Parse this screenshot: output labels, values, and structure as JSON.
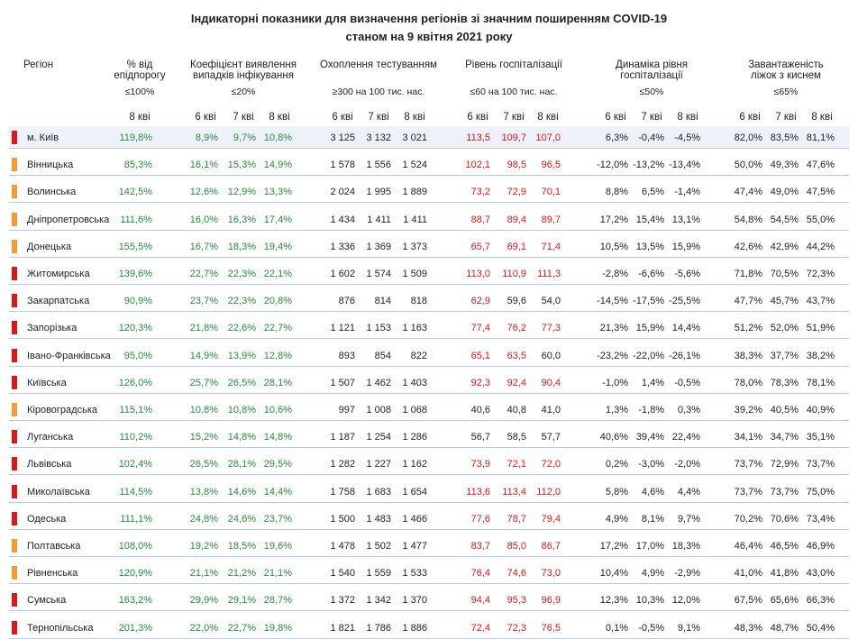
{
  "title": [
    "Індикаторні показники для визначення регіонів зі значним поширенням COVID-19",
    "станом на 9 квітня 2021 року"
  ],
  "header": {
    "region": "Регіон",
    "groups": [
      {
        "title": [
          "% від",
          "епідпорогу"
        ],
        "threshold": "≤100%",
        "days": [
          "8 кві"
        ],
        "color": "#2a8a3e"
      },
      {
        "title": [
          "Коефіцієнт виявлення",
          "випадків інфікування"
        ],
        "threshold": "≤20%",
        "days": [
          "6 кві",
          "7 кві",
          "8 кві"
        ],
        "color": "#2a8a3e"
      },
      {
        "title": [
          "Охоплення тестуванням"
        ],
        "threshold": "≥300 на 100 тис. нас.",
        "days": [
          "6 кві",
          "7 кві",
          "8 кві"
        ],
        "color": "#222222"
      },
      {
        "title": [
          "Рівень госпіталізації"
        ],
        "threshold": "≤60 на 100 тис. нас.",
        "days": [
          "6 кві",
          "7 кві",
          "8 кві"
        ],
        "color": "#222222"
      },
      {
        "title": [
          "Динаміка рівня",
          "госпіталізації"
        ],
        "threshold": "≤50%",
        "days": [
          "6 кві",
          "7 кві",
          "8 кві"
        ],
        "color": "#222222"
      },
      {
        "title": [
          "Завантаженість",
          "ліжок з киснем"
        ],
        "threshold": "≤65%",
        "days": [
          "6 кві",
          "7 кві",
          "8 кві"
        ],
        "color": "#222222"
      }
    ]
  },
  "rows": [
    {
      "region": "м. Київ",
      "marker": "#d7191c",
      "hosp_colors": [
        "#d7191c",
        "#d7191c",
        "#d7191c"
      ],
      "cells": [
        "119,8%",
        "8,9%",
        "9,7%",
        "10,8%",
        "3 125",
        "3 132",
        "3 021",
        "113,5",
        "109,7",
        "107,0",
        "6,3%",
        "-0,4%",
        "-4,5%",
        "82,0%",
        "83,5%",
        "81,1%"
      ]
    },
    {
      "region": "Вінницька",
      "marker": "#f39c34",
      "hosp_colors": [
        "#d7191c",
        "#d7191c",
        "#d7191c"
      ],
      "cells": [
        "85,3%",
        "16,1%",
        "15,3%",
        "14,9%",
        "1 578",
        "1 556",
        "1 524",
        "102,1",
        "98,5",
        "96,5",
        "-12,0%",
        "-13,2%",
        "-13,4%",
        "50,0%",
        "49,3%",
        "47,6%"
      ]
    },
    {
      "region": "Волинська",
      "marker": "#f39c34",
      "hosp_colors": [
        "#d7191c",
        "#d7191c",
        "#d7191c"
      ],
      "cells": [
        "142,5%",
        "12,6%",
        "12,9%",
        "13,3%",
        "2 024",
        "1 995",
        "1 889",
        "73,2",
        "72,9",
        "70,1",
        "8,8%",
        "6,5%",
        "-1,4%",
        "47,4%",
        "49,0%",
        "47,5%"
      ]
    },
    {
      "region": "Дніпропетровська",
      "marker": "#f39c34",
      "hosp_colors": [
        "#d7191c",
        "#d7191c",
        "#d7191c"
      ],
      "cells": [
        "111,6%",
        "16,0%",
        "16,3%",
        "17,4%",
        "1 434",
        "1 411",
        "1 411",
        "88,7",
        "89,4",
        "89,7",
        "17,2%",
        "15,4%",
        "13,1%",
        "54,8%",
        "54,5%",
        "55,0%"
      ]
    },
    {
      "region": "Донецька",
      "marker": "#f39c34",
      "hosp_colors": [
        "#d7191c",
        "#d7191c",
        "#d7191c"
      ],
      "cells": [
        "155,5%",
        "16,7%",
        "18,3%",
        "19,4%",
        "1 336",
        "1 369",
        "1 373",
        "65,7",
        "69,1",
        "71,4",
        "10,5%",
        "13,5%",
        "15,9%",
        "42,6%",
        "42,9%",
        "44,2%"
      ]
    },
    {
      "region": "Житомирська",
      "marker": "#d7191c",
      "hosp_colors": [
        "#d7191c",
        "#d7191c",
        "#d7191c"
      ],
      "cells": [
        "139,6%",
        "22,7%",
        "22,3%",
        "22,1%",
        "1 602",
        "1 574",
        "1 509",
        "113,0",
        "110,9",
        "111,3",
        "-2,8%",
        "-6,6%",
        "-5,6%",
        "71,8%",
        "70,5%",
        "72,3%"
      ]
    },
    {
      "region": "Закарпатська",
      "marker": "#d7191c",
      "hosp_colors": [
        "#d7191c",
        "#222222",
        "#222222"
      ],
      "cells": [
        "90,9%",
        "23,7%",
        "22,3%",
        "20,8%",
        "876",
        "814",
        "818",
        "62,9",
        "59,6",
        "54,0",
        "-14,5%",
        "-17,5%",
        "-25,5%",
        "47,7%",
        "45,7%",
        "43,7%"
      ]
    },
    {
      "region": "Запорізька",
      "marker": "#d7191c",
      "hosp_colors": [
        "#d7191c",
        "#d7191c",
        "#d7191c"
      ],
      "cells": [
        "120,3%",
        "21,8%",
        "22,6%",
        "22,7%",
        "1 121",
        "1 153",
        "1 163",
        "77,4",
        "76,2",
        "77,3",
        "21,3%",
        "15,9%",
        "14,4%",
        "51,2%",
        "52,0%",
        "51,9%"
      ]
    },
    {
      "region": "Івано-Франківська",
      "marker": "#d7191c",
      "hosp_colors": [
        "#d7191c",
        "#d7191c",
        "#222222"
      ],
      "cells": [
        "95,0%",
        "14,9%",
        "13,9%",
        "12,8%",
        "893",
        "854",
        "822",
        "65,1",
        "63,5",
        "60,0",
        "-23,2%",
        "-22,0%",
        "-26,1%",
        "38,3%",
        "37,7%",
        "38,2%"
      ]
    },
    {
      "region": "Київська",
      "marker": "#d7191c",
      "hosp_colors": [
        "#d7191c",
        "#d7191c",
        "#d7191c"
      ],
      "cells": [
        "126,0%",
        "25,7%",
        "26,5%",
        "28,1%",
        "1 507",
        "1 462",
        "1 403",
        "92,3",
        "92,4",
        "90,4",
        "-1,0%",
        "1,4%",
        "-0,5%",
        "78,0%",
        "78,3%",
        "78,1%"
      ]
    },
    {
      "region": "Кіровоградська",
      "marker": "#f39c34",
      "hosp_colors": [
        "#222222",
        "#222222",
        "#222222"
      ],
      "cells": [
        "115,1%",
        "10,8%",
        "10,8%",
        "10,6%",
        "997",
        "1 008",
        "1 068",
        "40,6",
        "40,8",
        "41,0",
        "1,3%",
        "-1,8%",
        "0,3%",
        "39,2%",
        "40,5%",
        "40,9%"
      ]
    },
    {
      "region": "Луганська",
      "marker": "#d7191c",
      "hosp_colors": [
        "#222222",
        "#222222",
        "#222222"
      ],
      "cells": [
        "110,2%",
        "15,2%",
        "14,8%",
        "14,8%",
        "1 187",
        "1 254",
        "1 286",
        "56,7",
        "58,5",
        "57,7",
        "40,6%",
        "39,4%",
        "22,4%",
        "34,1%",
        "34,7%",
        "35,1%"
      ]
    },
    {
      "region": "Львівська",
      "marker": "#d7191c",
      "hosp_colors": [
        "#d7191c",
        "#d7191c",
        "#d7191c"
      ],
      "cells": [
        "102,4%",
        "26,5%",
        "28,1%",
        "29,5%",
        "1 282",
        "1 227",
        "1 162",
        "73,9",
        "72,1",
        "72,0",
        "0,2%",
        "-3,0%",
        "-2,0%",
        "73,7%",
        "72,9%",
        "73,7%"
      ]
    },
    {
      "region": "Миколаївська",
      "marker": "#d7191c",
      "hosp_colors": [
        "#d7191c",
        "#d7191c",
        "#d7191c"
      ],
      "cells": [
        "114,5%",
        "13,8%",
        "14,6%",
        "14,4%",
        "1 758",
        "1 683",
        "1 654",
        "113,6",
        "113,4",
        "112,0",
        "5,8%",
        "4,6%",
        "4,4%",
        "73,7%",
        "73,7%",
        "75,0%"
      ]
    },
    {
      "region": "Одеська",
      "marker": "#d7191c",
      "hosp_colors": [
        "#d7191c",
        "#d7191c",
        "#d7191c"
      ],
      "cells": [
        "111,1%",
        "24,8%",
        "24,6%",
        "23,7%",
        "1 500",
        "1 483",
        "1 466",
        "77,6",
        "78,7",
        "79,4",
        "4,9%",
        "8,1%",
        "9,7%",
        "70,2%",
        "70,6%",
        "73,4%"
      ]
    },
    {
      "region": "Полтавська",
      "marker": "#f39c34",
      "hosp_colors": [
        "#d7191c",
        "#d7191c",
        "#d7191c"
      ],
      "cells": [
        "108,0%",
        "19,2%",
        "18,5%",
        "19,6%",
        "1 478",
        "1 502",
        "1 477",
        "83,7",
        "85,0",
        "86,7",
        "17,2%",
        "17,0%",
        "18,3%",
        "46,4%",
        "46,5%",
        "46,9%"
      ]
    },
    {
      "region": "Рівненська",
      "marker": "#f39c34",
      "hosp_colors": [
        "#d7191c",
        "#d7191c",
        "#d7191c"
      ],
      "cells": [
        "120,9%",
        "21,1%",
        "21,2%",
        "21,1%",
        "1 540",
        "1 559",
        "1 533",
        "76,4",
        "74,6",
        "73,0",
        "10,4%",
        "4,9%",
        "-2,9%",
        "41,0%",
        "41,8%",
        "43,0%"
      ]
    },
    {
      "region": "Сумська",
      "marker": "#d7191c",
      "hosp_colors": [
        "#d7191c",
        "#d7191c",
        "#d7191c"
      ],
      "cells": [
        "163,2%",
        "29,9%",
        "29,1%",
        "28,7%",
        "1 372",
        "1 342",
        "1 370",
        "94,4",
        "95,3",
        "96,9",
        "12,3%",
        "10,3%",
        "12,0%",
        "67,5%",
        "65,6%",
        "66,3%"
      ]
    },
    {
      "region": "Тернопільська",
      "marker": "#d7191c",
      "hosp_colors": [
        "#d7191c",
        "#d7191c",
        "#d7191c"
      ],
      "cells": [
        "201,3%",
        "22,0%",
        "22,7%",
        "19,8%",
        "1 821",
        "1 786",
        "1 886",
        "72,4",
        "72,3",
        "76,5",
        "0,1%",
        "-0,5%",
        "9,1%",
        "48,3%",
        "48,7%",
        "50,4%"
      ]
    }
  ]
}
